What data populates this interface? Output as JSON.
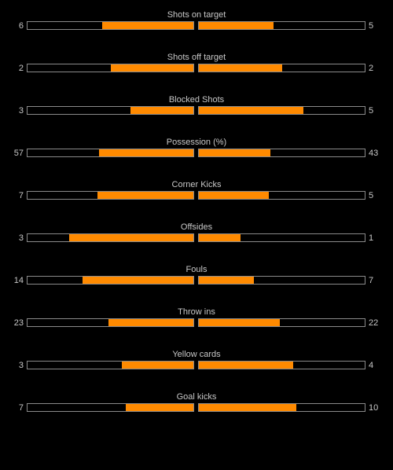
{
  "colors": {
    "background": "#000000",
    "fill": "#ff8a00",
    "bar_border": "#8a8a8a",
    "text": "#c8c8c8"
  },
  "stats": [
    {
      "label": "Shots on target",
      "home": "6",
      "away": "5",
      "home_fill": 0.55,
      "away_fill": 0.45
    },
    {
      "label": "Shots off target",
      "home": "2",
      "away": "2",
      "home_fill": 0.5,
      "away_fill": 0.5
    },
    {
      "label": "Blocked Shots",
      "home": "3",
      "away": "5",
      "home_fill": 0.38,
      "away_fill": 0.63
    },
    {
      "label": "Possession (%)",
      "home": "57",
      "away": "43",
      "home_fill": 0.57,
      "away_fill": 0.43
    },
    {
      "label": "Corner Kicks",
      "home": "7",
      "away": "5",
      "home_fill": 0.58,
      "away_fill": 0.42
    },
    {
      "label": "Offsides",
      "home": "3",
      "away": "1",
      "home_fill": 0.75,
      "away_fill": 0.25
    },
    {
      "label": "Fouls",
      "home": "14",
      "away": "7",
      "home_fill": 0.67,
      "away_fill": 0.33
    },
    {
      "label": "Throw ins",
      "home": "23",
      "away": "22",
      "home_fill": 0.51,
      "away_fill": 0.49
    },
    {
      "label": "Yellow cards",
      "home": "3",
      "away": "4",
      "home_fill": 0.43,
      "away_fill": 0.57
    },
    {
      "label": "Goal kicks",
      "home": "7",
      "away": "10",
      "home_fill": 0.41,
      "away_fill": 0.59
    }
  ]
}
